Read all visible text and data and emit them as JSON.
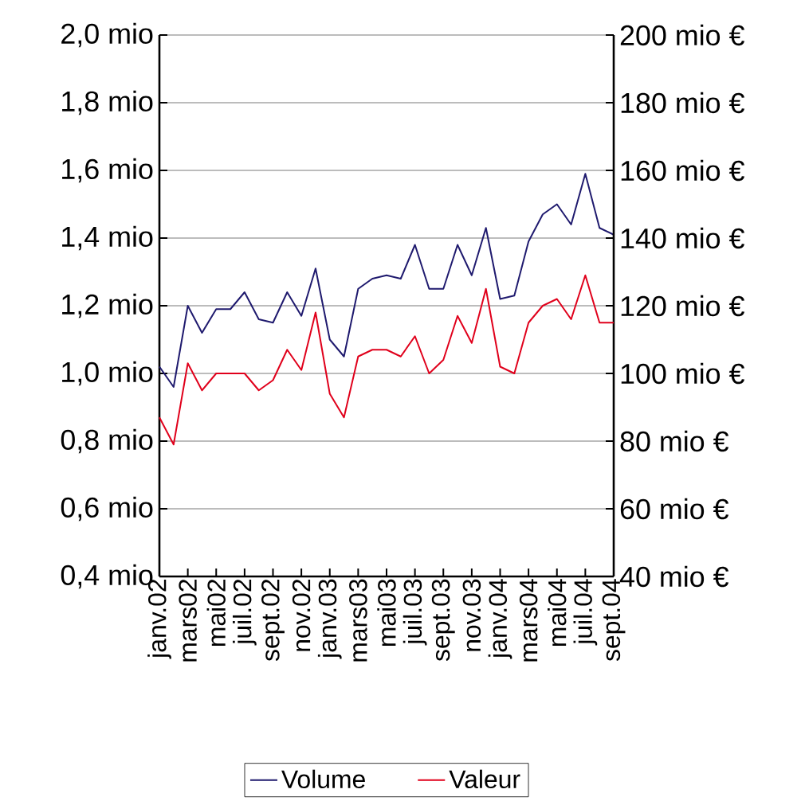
{
  "chart_data": {
    "type": "line",
    "categories": [
      "janv.02",
      null,
      "mars02",
      null,
      "mai02",
      null,
      "juil.02",
      null,
      "sept.02",
      null,
      "nov.02",
      null,
      "janv.03",
      null,
      "mars03",
      null,
      "mai03",
      null,
      "juil.03",
      null,
      "sept.03",
      null,
      "nov.03",
      null,
      "janv.04",
      null,
      "mars04",
      null,
      "mai04",
      null,
      "juil.04",
      null,
      "sept.04"
    ],
    "series": [
      {
        "name": "Volume",
        "color": "#1f1a6e",
        "values": [
          1.02,
          0.96,
          1.2,
          1.12,
          1.19,
          1.19,
          1.24,
          1.16,
          1.15,
          1.24,
          1.17,
          1.31,
          1.1,
          1.05,
          1.25,
          1.28,
          1.29,
          1.28,
          1.38,
          1.25,
          1.25,
          1.38,
          1.29,
          1.43,
          1.22,
          1.23,
          1.39,
          1.47,
          1.5,
          1.44,
          1.59,
          1.43,
          1.41
        ]
      },
      {
        "name": "Valeur",
        "color": "#e0001b",
        "axis": "y2",
        "values": [
          87,
          79,
          103,
          95,
          100,
          100,
          100,
          95,
          98,
          107,
          101,
          118,
          94,
          87,
          105,
          107,
          107,
          105,
          111,
          100,
          104,
          117,
          109,
          125,
          102,
          100,
          115,
          120,
          122,
          116,
          129,
          115,
          115
        ]
      }
    ],
    "ylim": [
      0.4,
      2.0
    ],
    "yticks": [
      {
        "value": 0.4,
        "label": "0,4 mio"
      },
      {
        "value": 0.6,
        "label": "0,6 mio"
      },
      {
        "value": 0.8,
        "label": "0,8 mio"
      },
      {
        "value": 1.0,
        "label": "1,0 mio"
      },
      {
        "value": 1.2,
        "label": "1,2 mio"
      },
      {
        "value": 1.4,
        "label": "1,4 mio"
      },
      {
        "value": 1.6,
        "label": "1,6 mio"
      },
      {
        "value": 1.8,
        "label": "1,8 mio"
      },
      {
        "value": 2.0,
        "label": "2,0 mio"
      }
    ],
    "y2lim": [
      40,
      200
    ],
    "y2ticks": [
      {
        "value": 40,
        "label": "40 mio €"
      },
      {
        "value": 60,
        "label": "60 mio €"
      },
      {
        "value": 80,
        "label": "80 mio €"
      },
      {
        "value": 100,
        "label": "100 mio €"
      },
      {
        "value": 120,
        "label": "120 mio €"
      },
      {
        "value": 140,
        "label": "140 mio €"
      },
      {
        "value": 160,
        "label": "160 mio €"
      },
      {
        "value": 180,
        "label": "180 mio €"
      },
      {
        "value": 200,
        "label": "200 mio €"
      }
    ],
    "grid": "y",
    "legend": "bottom",
    "marker": "none",
    "line_style": "solid"
  }
}
